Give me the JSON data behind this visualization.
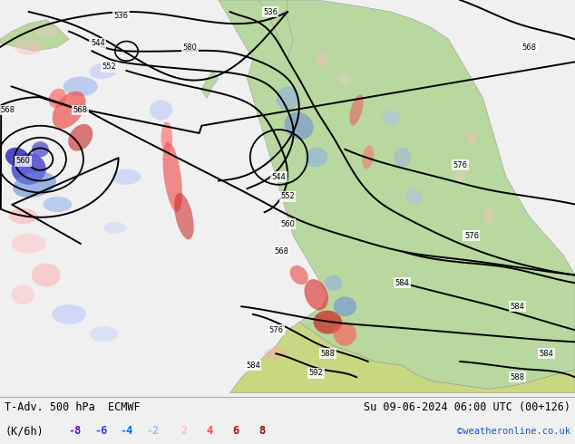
{
  "title_left": "T-Adv. 500 hPa  ECMWF",
  "title_right": "Su 09-06-2024 06:00 UTC (00+126)",
  "ylabel": "(K/6h)",
  "legend_values": [
    "-8",
    "-6",
    "-4",
    "-2",
    "2",
    "4",
    "6",
    "8"
  ],
  "legend_colors": [
    "#6600cc",
    "#3333ff",
    "#0066ff",
    "#99bbff",
    "#ffbbbb",
    "#ff4444",
    "#cc0000",
    "#880000"
  ],
  "credit": "©weatheronline.co.uk",
  "fig_width": 6.34,
  "fig_height": 4.9,
  "font_size_title": 9,
  "font_size_legend": 9,
  "font_size_credit": 8,
  "ocean_color": "#e8e8ec",
  "land_europe_color": "#b8d8a0",
  "land_africa_color": "#c8d880",
  "land_gray_color": "#c0c0c0",
  "bottom_bg": "#f0f0f0"
}
